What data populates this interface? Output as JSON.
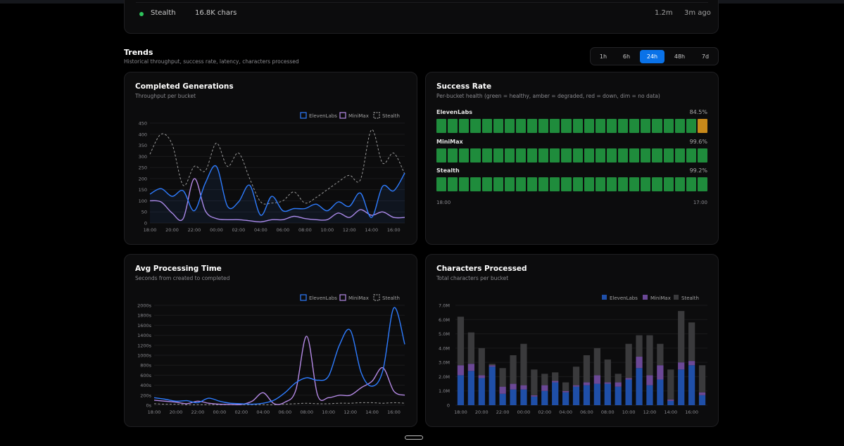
{
  "top_row": {
    "name": "Stealth",
    "chars": "16.8K chars",
    "value": "1.2m",
    "ago": "3m ago"
  },
  "trends": {
    "title": "Trends",
    "subtitle": "Historical throughput, success rate, latency, characters processed"
  },
  "ranges": {
    "options": [
      "1h",
      "6h",
      "24h",
      "48h",
      "7d"
    ],
    "selected": "24h"
  },
  "colors": {
    "elevenlabs": "#2e7cff",
    "minimax": "#b58ae6",
    "stealth": "#9a9a9a",
    "healthy": "#1f8c3c",
    "degraded": "#c8891a",
    "accent": "#0a72e8"
  },
  "legend": {
    "elevenlabs": "ElevenLabs",
    "minimax": "MiniMax",
    "stealth": "Stealth"
  },
  "completed": {
    "title": "Completed Generations",
    "subtitle": "Throughput per bucket",
    "chart_data": {
      "type": "line",
      "x": [
        "18:00",
        "19:00",
        "20:00",
        "21:00",
        "22:00",
        "23:00",
        "00:00",
        "01:00",
        "02:00",
        "03:00",
        "04:00",
        "05:00",
        "06:00",
        "07:00",
        "08:00",
        "09:00",
        "10:00",
        "11:00",
        "12:00",
        "13:00",
        "14:00",
        "15:00",
        "16:00",
        "17:00"
      ],
      "xticks": [
        "18:00",
        "20:00",
        "22:00",
        "00:00",
        "02:00",
        "04:00",
        "06:00",
        "08:00",
        "10:00",
        "12:00",
        "14:00",
        "16:00"
      ],
      "yticks": [
        0,
        50,
        100,
        150,
        200,
        250,
        300,
        350,
        400,
        450
      ],
      "ylim": [
        0,
        450
      ],
      "series": [
        {
          "name": "ElevenLabs",
          "values": [
            130,
            155,
            120,
            145,
            55,
            180,
            255,
            75,
            95,
            170,
            35,
            120,
            55,
            65,
            65,
            85,
            55,
            95,
            75,
            135,
            25,
            165,
            145,
            225
          ]
        },
        {
          "name": "MiniMax",
          "values": [
            100,
            95,
            45,
            20,
            200,
            55,
            20,
            15,
            15,
            10,
            5,
            15,
            15,
            30,
            20,
            15,
            15,
            45,
            25,
            60,
            35,
            50,
            25,
            25
          ]
        },
        {
          "name": "Stealth",
          "values": [
            310,
            400,
            355,
            170,
            255,
            235,
            360,
            255,
            315,
            200,
            95,
            90,
            100,
            140,
            90,
            115,
            150,
            185,
            215,
            195,
            420,
            270,
            315,
            220
          ]
        }
      ]
    }
  },
  "success": {
    "title": "Success Rate",
    "subtitle": "Per-bucket health (green = healthy, amber = degraded, red = down, dim = no data)",
    "providers": [
      {
        "name": "ElevenLabs",
        "pct": "84.5%",
        "cells": [
          "green",
          "green",
          "green",
          "green",
          "green",
          "green",
          "green",
          "green",
          "green",
          "green",
          "green",
          "green",
          "green",
          "green",
          "green",
          "green",
          "green",
          "green",
          "green",
          "green",
          "green",
          "green",
          "green",
          "amber"
        ]
      },
      {
        "name": "MiniMax",
        "pct": "99.6%",
        "cells": [
          "green",
          "green",
          "green",
          "green",
          "green",
          "green",
          "green",
          "green",
          "green",
          "green",
          "green",
          "green",
          "green",
          "green",
          "green",
          "green",
          "green",
          "green",
          "green",
          "green",
          "green",
          "green",
          "green",
          "green"
        ]
      },
      {
        "name": "Stealth",
        "pct": "99.2%",
        "cells": [
          "green",
          "green",
          "green",
          "green",
          "green",
          "green",
          "green",
          "green",
          "green",
          "green",
          "green",
          "green",
          "green",
          "green",
          "green",
          "green",
          "green",
          "green",
          "green",
          "green",
          "green",
          "green",
          "green",
          "green"
        ]
      }
    ],
    "start_label": "18:00",
    "end_label": "17:00"
  },
  "avg": {
    "title": "Avg Processing Time",
    "subtitle": "Seconds from created to completed",
    "chart_data": {
      "type": "line",
      "x": [
        "18:00",
        "19:00",
        "20:00",
        "21:00",
        "22:00",
        "23:00",
        "00:00",
        "01:00",
        "02:00",
        "03:00",
        "04:00",
        "05:00",
        "06:00",
        "07:00",
        "08:00",
        "09:00",
        "10:00",
        "11:00",
        "12:00",
        "13:00",
        "14:00",
        "15:00",
        "16:00",
        "17:00"
      ],
      "xticks": [
        "18:00",
        "20:00",
        "22:00",
        "00:00",
        "02:00",
        "04:00",
        "06:00",
        "08:00",
        "10:00",
        "12:00",
        "14:00",
        "16:00"
      ],
      "yticks": [
        "0s",
        "200s",
        "400s",
        "600s",
        "800s",
        "1000s",
        "1200s",
        "1400s",
        "1600s",
        "1800s",
        "2000s"
      ],
      "ylim": [
        0,
        2000
      ],
      "series": [
        {
          "name": "ElevenLabs",
          "values": [
            150,
            120,
            80,
            90,
            50,
            140,
            80,
            40,
            30,
            20,
            40,
            100,
            250,
            450,
            550,
            500,
            580,
            1200,
            1500,
            650,
            380,
            700,
            1950,
            1220
          ]
        },
        {
          "name": "MiniMax",
          "values": [
            100,
            80,
            60,
            30,
            80,
            40,
            20,
            15,
            15,
            80,
            250,
            30,
            60,
            300,
            1380,
            200,
            150,
            200,
            200,
            350,
            480,
            750,
            280,
            200
          ]
        },
        {
          "name": "Stealth",
          "values": [
            30,
            20,
            20,
            10,
            10,
            10,
            10,
            10,
            10,
            10,
            10,
            10,
            20,
            30,
            40,
            30,
            30,
            40,
            40,
            50,
            50,
            40,
            50,
            40
          ]
        }
      ]
    }
  },
  "chars": {
    "title": "Characters Processed",
    "subtitle": "Total characters per bucket",
    "chart_data": {
      "type": "bar",
      "categories": [
        "18:00",
        "19:00",
        "20:00",
        "21:00",
        "22:00",
        "23:00",
        "00:00",
        "01:00",
        "02:00",
        "03:00",
        "04:00",
        "05:00",
        "06:00",
        "07:00",
        "08:00",
        "09:00",
        "10:00",
        "11:00",
        "12:00",
        "13:00",
        "14:00",
        "15:00",
        "16:00",
        "17:00"
      ],
      "xticks": [
        "18:00",
        "20:00",
        "22:00",
        "00:00",
        "02:00",
        "04:00",
        "06:00",
        "08:00",
        "10:00",
        "12:00",
        "14:00",
        "16:00"
      ],
      "yticks": [
        "0",
        "1.0M",
        "2.0M",
        "3.0M",
        "4.0M",
        "5.0M",
        "6.0M",
        "7.0M"
      ],
      "ylim": [
        0,
        7
      ],
      "unit": "M",
      "series": [
        {
          "name": "ElevenLabs",
          "values": [
            2.1,
            2.4,
            1.9,
            2.7,
            0.8,
            1.1,
            1.1,
            0.6,
            1.0,
            1.6,
            0.9,
            1.3,
            1.4,
            1.5,
            1.5,
            1.3,
            1.8,
            2.6,
            1.4,
            1.8,
            0.3,
            2.5,
            2.8,
            0.7
          ]
        },
        {
          "name": "MiniMax",
          "values": [
            0.7,
            0.5,
            0.2,
            0.1,
            0.5,
            0.4,
            0.3,
            0.1,
            0.4,
            0.1,
            0.1,
            0.1,
            0.2,
            0.6,
            0.1,
            0.3,
            0.1,
            0.8,
            0.7,
            1.0,
            0.1,
            0.5,
            0.3,
            0.2
          ]
        },
        {
          "name": "Stealth",
          "values": [
            3.4,
            2.2,
            1.9,
            0.1,
            1.3,
            2.0,
            2.9,
            1.8,
            0.8,
            0.6,
            0.6,
            1.3,
            1.9,
            1.9,
            1.6,
            0.6,
            2.4,
            1.5,
            2.8,
            1.5,
            2.1,
            3.6,
            2.7,
            1.9
          ]
        }
      ],
      "colors": [
        "#1f4fa8",
        "#6b4896",
        "#3a3a3c"
      ]
    }
  }
}
